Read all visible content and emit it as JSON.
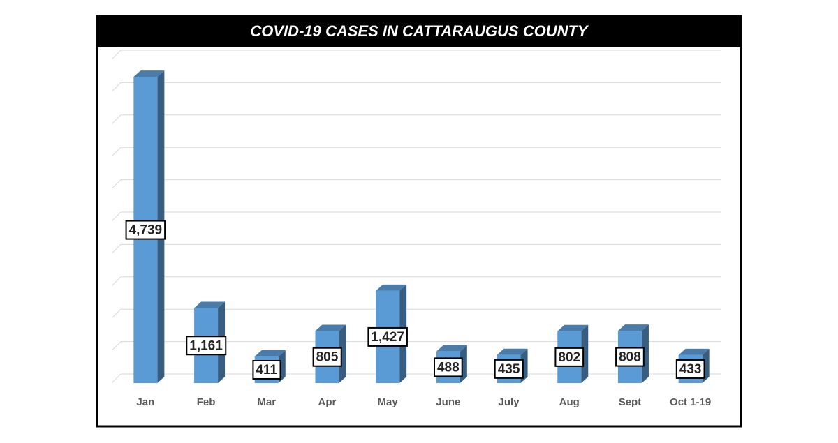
{
  "chart_data": {
    "type": "bar3d",
    "title": "COVID-19 CASES IN CATTARAUGUS COUNTY",
    "categories": [
      "Jan",
      "Feb",
      "Mar",
      "Apr",
      "May",
      "June",
      "July",
      "Aug",
      "Sept",
      "Oct 1-19"
    ],
    "values": [
      4739,
      1161,
      411,
      805,
      1427,
      488,
      435,
      802,
      808,
      433
    ],
    "value_labels": [
      "4,739",
      "1,161",
      "411",
      "805",
      "1,427",
      "488",
      "435",
      "802",
      "808",
      "433"
    ],
    "color": "#5b9bd5",
    "ylim": [
      0,
      5000
    ]
  }
}
